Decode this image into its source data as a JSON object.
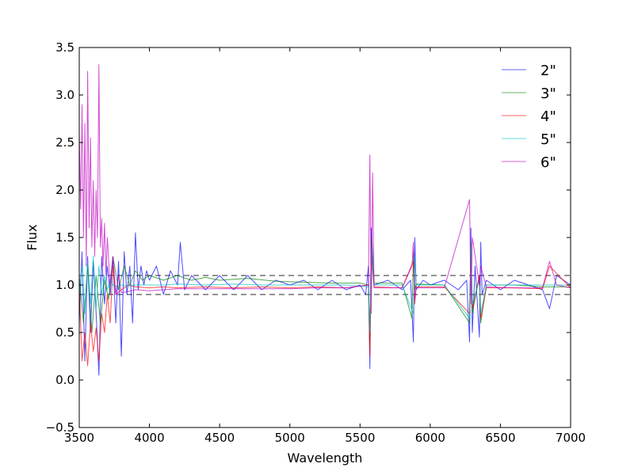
{
  "chart_data": {
    "type": "line",
    "title": "",
    "xlabel": "Wavelength",
    "ylabel": "Flux",
    "xlim": [
      3500,
      7000
    ],
    "ylim": [
      -0.5,
      3.5
    ],
    "xticks": [
      3500,
      4000,
      4500,
      5000,
      5500,
      6000,
      6500,
      7000
    ],
    "yticks": [
      -0.5,
      0.0,
      0.5,
      1.0,
      1.5,
      2.0,
      2.5,
      3.0,
      3.5
    ],
    "ytick_labels": [
      "−0.5",
      "0.0",
      "0.5",
      "1.0",
      "1.5",
      "2.0",
      "2.5",
      "3.0",
      "3.5"
    ],
    "grid": false,
    "legend_position": "top-right",
    "reference_lines": [
      {
        "y": 1.1,
        "style": "dashed",
        "color": "#555555"
      },
      {
        "y": 0.9,
        "style": "dashed",
        "color": "#555555"
      }
    ],
    "series": [
      {
        "name": "2\"",
        "color": "#0000ff",
        "x": [
          3500,
          3520,
          3540,
          3560,
          3580,
          3600,
          3620,
          3640,
          3660,
          3680,
          3700,
          3720,
          3740,
          3760,
          3780,
          3800,
          3820,
          3840,
          3860,
          3880,
          3900,
          3920,
          3940,
          3960,
          3980,
          4000,
          4050,
          4100,
          4150,
          4200,
          4220,
          4250,
          4300,
          4400,
          4500,
          4600,
          4700,
          4800,
          4900,
          5000,
          5100,
          5200,
          5300,
          5400,
          5500,
          5540,
          5560,
          5570,
          5580,
          5600,
          5700,
          5800,
          5860,
          5880,
          5890,
          5900,
          5950,
          6000,
          6100,
          6200,
          6260,
          6280,
          6290,
          6300,
          6320,
          6350,
          6360,
          6370,
          6400,
          6500,
          6600,
          6700,
          6800,
          6850,
          6900,
          7000
        ],
        "y": [
          0.6,
          1.35,
          0.2,
          1.3,
          0.5,
          1.25,
          0.7,
          0.05,
          1.3,
          0.8,
          1.2,
          0.9,
          1.3,
          0.6,
          1.25,
          0.25,
          1.35,
          0.9,
          1.2,
          0.6,
          1.55,
          0.95,
          1.2,
          1.0,
          1.15,
          1.05,
          1.2,
          0.9,
          1.15,
          1.0,
          1.45,
          0.95,
          1.1,
          0.95,
          1.1,
          0.95,
          1.1,
          0.95,
          1.05,
          1.0,
          1.05,
          0.95,
          1.05,
          0.95,
          1.0,
          0.9,
          1.2,
          0.12,
          1.6,
          1.0,
          1.05,
          0.95,
          1.05,
          0.4,
          1.5,
          0.95,
          1.05,
          1.0,
          1.05,
          0.95,
          1.05,
          0.4,
          1.6,
          0.5,
          1.2,
          0.45,
          1.45,
          0.9,
          1.05,
          0.95,
          1.05,
          1.0,
          0.95,
          0.75,
          1.1,
          1.0
        ]
      },
      {
        "name": "3\"",
        "color": "#008000",
        "x": [
          3500,
          3530,
          3560,
          3590,
          3620,
          3650,
          3680,
          3710,
          3740,
          3780,
          3820,
          3860,
          3900,
          3950,
          4000,
          4100,
          4200,
          4300,
          4400,
          4500,
          4700,
          4900,
          5100,
          5300,
          5500,
          5560,
          5570,
          5580,
          5600,
          5800,
          5870,
          5880,
          5890,
          5900,
          6100,
          6280,
          6290,
          6300,
          6350,
          6360,
          6400,
          6600,
          6800,
          7000
        ],
        "y": [
          1.1,
          0.6,
          1.2,
          0.5,
          1.1,
          0.6,
          1.05,
          0.85,
          1.3,
          0.95,
          1.2,
          1.0,
          1.15,
          1.05,
          1.1,
          1.05,
          1.1,
          1.05,
          1.08,
          1.05,
          1.07,
          1.04,
          1.03,
          1.02,
          1.02,
          1.0,
          0.35,
          1.5,
          1.02,
          1.02,
          0.65,
          1.35,
          0.95,
          1.01,
          1.0,
          0.6,
          1.45,
          0.7,
          1.1,
          0.6,
          1.0,
          1.0,
          0.98,
          0.98
        ]
      },
      {
        "name": "4\"",
        "color": "#ff0000",
        "x": [
          3500,
          3520,
          3540,
          3560,
          3580,
          3600,
          3620,
          3640,
          3660,
          3680,
          3700,
          3720,
          3740,
          3760,
          3800,
          3850,
          3900,
          4000,
          4100,
          4200,
          4400,
          4600,
          4800,
          5000,
          5200,
          5400,
          5560,
          5570,
          5580,
          5600,
          5800,
          5880,
          5890,
          5900,
          6100,
          6280,
          6290,
          6300,
          6350,
          6360,
          6400,
          6600,
          6800,
          6850,
          7000
        ],
        "y": [
          1.0,
          0.2,
          0.5,
          0.15,
          0.6,
          0.3,
          0.55,
          0.2,
          0.7,
          0.5,
          0.9,
          0.6,
          1.2,
          0.9,
          0.95,
          1.0,
          0.98,
          0.97,
          0.98,
          0.97,
          0.98,
          0.97,
          0.98,
          0.97,
          0.98,
          0.97,
          1.0,
          0.25,
          1.3,
          0.98,
          0.97,
          1.25,
          0.8,
          0.98,
          0.98,
          0.7,
          1.3,
          0.75,
          1.1,
          0.65,
          0.97,
          0.97,
          0.96,
          1.2,
          0.97
        ]
      },
      {
        "name": "5\"",
        "color": "#00bfbf",
        "x": [
          3500,
          3520,
          3540,
          3560,
          3580,
          3600,
          3620,
          3640,
          3660,
          3680,
          3700,
          3720,
          3750,
          3800,
          3850,
          3900,
          4000,
          4100,
          4200,
          4400,
          4600,
          4800,
          5000,
          5200,
          5400,
          5560,
          5570,
          5580,
          5600,
          5800,
          5880,
          5890,
          5900,
          6100,
          6280,
          6290,
          6300,
          6350,
          6360,
          6400,
          6600,
          6800,
          7000
        ],
        "y": [
          0.9,
          1.2,
          0.7,
          1.25,
          0.8,
          1.3,
          0.75,
          1.2,
          0.9,
          1.1,
          0.95,
          1.05,
          0.98,
          1.0,
          0.99,
          1.0,
          1.0,
          1.0,
          1.01,
          1.0,
          1.01,
          1.0,
          1.0,
          1.0,
          1.0,
          0.98,
          0.5,
          1.4,
          1.0,
          1.0,
          0.7,
          1.3,
          1.0,
          1.0,
          0.65,
          1.4,
          0.8,
          1.05,
          0.7,
          1.0,
          1.0,
          1.0,
          1.0
        ]
      },
      {
        "name": "6\"",
        "color": "#bf00bf",
        "x": [
          3500,
          3510,
          3520,
          3530,
          3540,
          3550,
          3560,
          3570,
          3580,
          3590,
          3600,
          3610,
          3620,
          3630,
          3640,
          3650,
          3660,
          3670,
          3680,
          3690,
          3700,
          3720,
          3740,
          3760,
          3780,
          3800,
          3850,
          3900,
          4000,
          4100,
          4200,
          4400,
          4600,
          4800,
          5000,
          5200,
          5400,
          5560,
          5570,
          5580,
          5590,
          5600,
          5800,
          5870,
          5880,
          5890,
          5900,
          6100,
          6280,
          6290,
          6300,
          6350,
          6360,
          6400,
          6600,
          6800,
          6850,
          6900,
          7000
        ],
        "y": [
          2.6,
          1.8,
          2.9,
          1.5,
          2.7,
          1.2,
          3.25,
          1.6,
          2.55,
          1.4,
          2.1,
          1.3,
          2.0,
          1.5,
          3.32,
          1.4,
          1.7,
          1.2,
          1.65,
          1.1,
          1.5,
          1.0,
          1.3,
          0.9,
          1.1,
          0.92,
          0.93,
          0.95,
          0.94,
          0.95,
          0.96,
          0.96,
          0.96,
          0.96,
          0.96,
          0.97,
          0.97,
          1.0,
          2.37,
          0.7,
          2.18,
          0.97,
          0.97,
          1.2,
          1.45,
          0.85,
          0.97,
          0.97,
          1.9,
          0.8,
          1.5,
          1.0,
          1.2,
          0.98,
          0.97,
          0.97,
          1.25,
          1.0,
          0.97
        ]
      }
    ]
  }
}
